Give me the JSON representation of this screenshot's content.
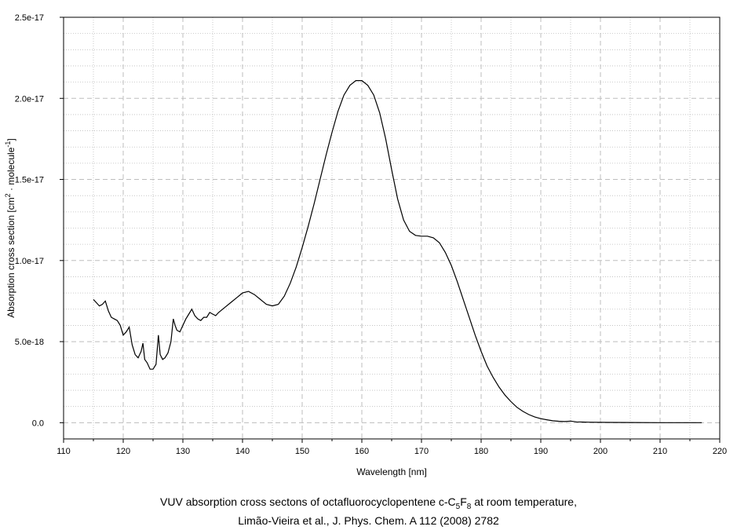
{
  "chart_data": {
    "type": "line",
    "xlabel": "Wavelength [nm]",
    "ylabel": {
      "parts": [
        "Absorption cross section [cm",
        "2",
        " · molecule",
        "-1",
        "]"
      ]
    },
    "xlim": [
      110,
      220
    ],
    "ylim": [
      -1e-18,
      2.5e-17
    ],
    "x_ticks": [
      110,
      120,
      130,
      140,
      150,
      160,
      170,
      180,
      190,
      200,
      210,
      220
    ],
    "y_ticks": [
      0.0,
      5e-18,
      1e-17,
      1.5e-17,
      2e-17,
      2.5e-17
    ],
    "y_tick_labels": [
      "0.0",
      "5.0e-18",
      "1.0e-17",
      "1.5e-17",
      "2.0e-17",
      "2.5e-17"
    ],
    "grid": true,
    "line_color": "#000000",
    "grid_color": "#bdbdbd",
    "series": [
      {
        "x": [
          115,
          115.5,
          116,
          116.5,
          117,
          117.5,
          118,
          118.5,
          119,
          119.5,
          120,
          120.5,
          121,
          121.5,
          122,
          122.5,
          123,
          123.3,
          123.6,
          124,
          124.5,
          125,
          125.5,
          125.9,
          126.2,
          126.6,
          127,
          127.5,
          128,
          128.4,
          128.7,
          129,
          129.5,
          130,
          130.5,
          131,
          131.5,
          132,
          132.5,
          133,
          133.5,
          134,
          134.5,
          135,
          135.5,
          136,
          137,
          138,
          139,
          140,
          141,
          142,
          143,
          144,
          145,
          146,
          147,
          148,
          149,
          150,
          151,
          152,
          153,
          154,
          155,
          156,
          157,
          158,
          159,
          160,
          161,
          162,
          163,
          164,
          165,
          166,
          167,
          168,
          169,
          170,
          171,
          172,
          173,
          174,
          175,
          176,
          177,
          178,
          179,
          180,
          181,
          182,
          183,
          184,
          185,
          186,
          187,
          188,
          189,
          190,
          191,
          192,
          193,
          194,
          195,
          196,
          197,
          198,
          200,
          202,
          205,
          210,
          217
        ],
        "y": [
          7.6e-18,
          7.4e-18,
          7.2e-18,
          7.3e-18,
          7.5e-18,
          6.9e-18,
          6.5e-18,
          6.4e-18,
          6.3e-18,
          6e-18,
          5.4e-18,
          5.6e-18,
          5.9e-18,
          4.8e-18,
          4.2e-18,
          4e-18,
          4.4e-18,
          4.9e-18,
          3.9e-18,
          3.7e-18,
          3.3e-18,
          3.3e-18,
          3.6e-18,
          5.4e-18,
          4.2e-18,
          3.9e-18,
          4e-18,
          4.3e-18,
          5e-18,
          6.4e-18,
          6e-18,
          5.7e-18,
          5.6e-18,
          6e-18,
          6.4e-18,
          6.7e-18,
          7e-18,
          6.6e-18,
          6.4e-18,
          6.3e-18,
          6.5e-18,
          6.5e-18,
          6.8e-18,
          6.7e-18,
          6.6e-18,
          6.8e-18,
          7.1e-18,
          7.4e-18,
          7.7e-18,
          8e-18,
          8.1e-18,
          7.9e-18,
          7.6e-18,
          7.3e-18,
          7.2e-18,
          7.3e-18,
          7.8e-18,
          8.6e-18,
          9.6e-18,
          1.08e-17,
          1.21e-17,
          1.35e-17,
          1.5e-17,
          1.65e-17,
          1.79e-17,
          1.92e-17,
          2.02e-17,
          2.08e-17,
          2.11e-17,
          2.11e-17,
          2.08e-17,
          2.02e-17,
          1.91e-17,
          1.75e-17,
          1.56e-17,
          1.38e-17,
          1.25e-17,
          1.18e-17,
          1.155e-17,
          1.15e-17,
          1.15e-17,
          1.14e-17,
          1.11e-17,
          1.05e-17,
          9.7e-18,
          8.7e-18,
          7.6e-18,
          6.5e-18,
          5.4e-18,
          4.4e-18,
          3.5e-18,
          2.8e-18,
          2.2e-18,
          1.7e-18,
          1.3e-18,
          9.5e-19,
          7e-19,
          5e-19,
          3.5e-19,
          2.5e-19,
          1.8e-19,
          1.2e-19,
          9e-20,
          7e-20,
          1e-19,
          5e-20,
          4e-20,
          3e-20,
          2e-20,
          1.5e-20,
          1e-20,
          0.0,
          0.0
        ]
      }
    ]
  },
  "caption": {
    "line1_pre": "VUV absorption cross sectons of octafluorocyclopentene c-C",
    "line1_sub1": "5",
    "line1_mid": "F",
    "line1_sub2": "8",
    "line1_post": " at room temperature,",
    "line2": "Limão-Vieira et al., J. Phys. Chem. A 112 (2008) 2782"
  }
}
